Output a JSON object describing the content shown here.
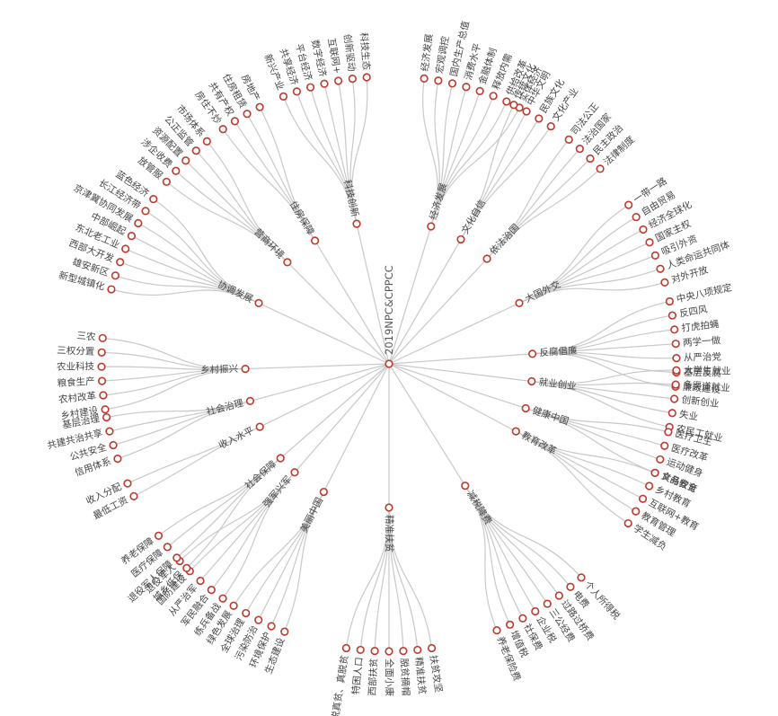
{
  "root": "2019NPC&CPPCC",
  "colors": {
    "link": "#c8c8c8",
    "dot_stroke": "#c0392b",
    "text": "#444444",
    "background": "#ffffff"
  },
  "branches": [
    {
      "name": "经济发展",
      "angle": -73,
      "children": [
        "经济发展",
        "宏观调控",
        "国内生产总值",
        "消费水平",
        "金融体制",
        "释放内需",
        "供给改革",
        "实体经济"
      ]
    },
    {
      "name": "文化自信",
      "angle": -60,
      "children": [
        "传统文化",
        "中华文明",
        "民族文化",
        "文化产业"
      ]
    },
    {
      "name": "依法治国",
      "angle": -47,
      "children": [
        "司法公正",
        "法治国家",
        "民主政治",
        "法律制度"
      ]
    },
    {
      "name": "大国外交",
      "angle": -25,
      "children": [
        "一带一路",
        "自由贸易",
        "经济全球化",
        "国家主权",
        "吸引外资",
        "人类命运共同体",
        "对外开放"
      ]
    },
    {
      "name": "反腐倡廉",
      "angle": -4,
      "children": [
        "中央八项规定",
        "反四风",
        "打虎拍蝇",
        "两学一做",
        "从严治党",
        "基层反腐",
        "廉政建设"
      ]
    },
    {
      "name": "就业创业",
      "angle": 7,
      "children": [
        "大学生就业",
        "多渠道就业",
        "创新创业",
        "失业",
        "农民工就业"
      ]
    },
    {
      "name": "健康中国",
      "angle": 18,
      "children": [
        "医疗卫生",
        "医疗改革",
        "运动健身",
        "食品安全"
      ]
    },
    {
      "name": "教育改革",
      "angle": 28,
      "children": [
        "义务教育",
        "乡村教育",
        "互联网+教育",
        "教育管理",
        "学生减负"
      ]
    },
    {
      "name": "减税降费",
      "angle": 58,
      "children": [
        "个人所得税",
        "电费",
        "过路过桥费",
        "三公经费",
        "企业税",
        "社保费",
        "增值税",
        "养老保险费"
      ]
    },
    {
      "name": "精准扶贫",
      "angle": 90,
      "children": [
        "扶贫攻坚",
        "精准扶贫",
        "脱贫摘帽",
        "全面小康",
        "西部扶贫",
        "特困人口",
        "脱真贫、真脱贫"
      ]
    },
    {
      "name": "美丽中国",
      "angle": 117,
      "children": [
        "生态建设",
        "环境保护",
        "污染防治",
        "全球治理",
        "绿色发展"
      ]
    },
    {
      "name": "强军兴军",
      "angle": 131,
      "children": [
        "练兵备战",
        "军民融合",
        "从严治军",
        "国防建设",
        "退役军人"
      ]
    },
    {
      "name": "社会保障",
      "angle": 139,
      "children": [
        "城乡低保",
        "退役军人保障",
        "医疗保障",
        "养老保障"
      ]
    },
    {
      "name": "收入水平",
      "angle": 154,
      "children": [
        "最低工资",
        "收入分配"
      ]
    },
    {
      "name": "社会治理",
      "angle": 165,
      "children": [
        "信用体系",
        "公共安全",
        "共建共治共享",
        "基层治理"
      ]
    },
    {
      "name": "乡村振兴",
      "angle": 178,
      "children": [
        "乡村建设",
        "农村改革",
        "粮食生产",
        "农业科技",
        "三权分置",
        "三农"
      ]
    },
    {
      "name": "协调发展",
      "angle": -155,
      "children": [
        "新型城镇化",
        "雄安新区",
        "西部大开发",
        "东北老工业",
        "中部崛起",
        "京津冀协同发展",
        "长江经济带",
        "蓝色经济"
      ]
    },
    {
      "name": "营商环境",
      "angle": -135,
      "children": [
        "放管服",
        "涉企收费",
        "资源配置",
        "公正监管",
        "市场体系"
      ]
    },
    {
      "name": "住房保障",
      "angle": -121,
      "children": [
        "房住不炒",
        "共有产权",
        "住房租赁",
        "房地产"
      ]
    },
    {
      "name": "科技创新",
      "angle": -103,
      "children": [
        "新兴产业",
        "共享经济",
        "平台经济",
        "数字经济",
        "互联网+",
        "创新驱动",
        "科技生态"
      ]
    }
  ]
}
